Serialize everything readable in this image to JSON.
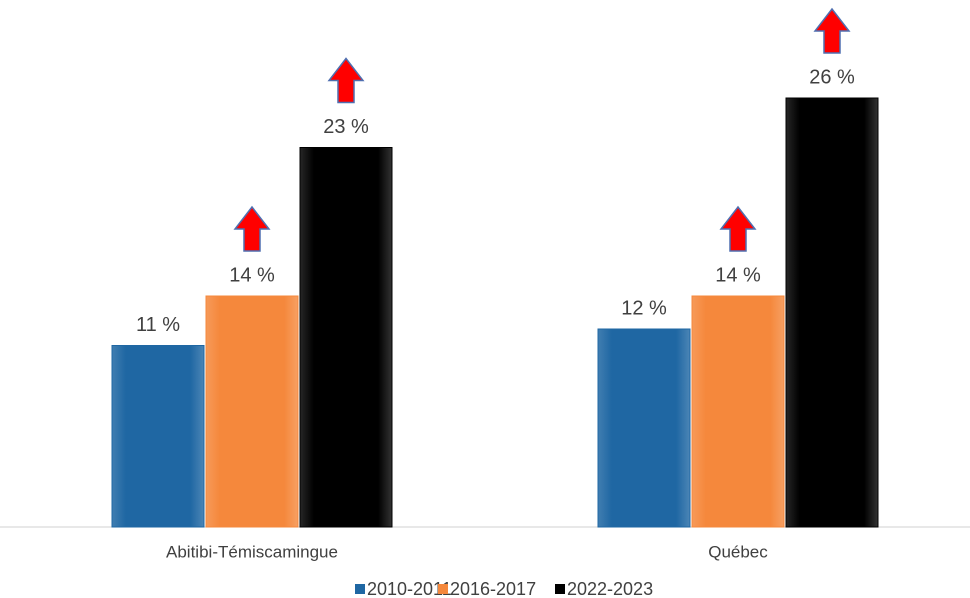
{
  "chart_data": {
    "type": "bar",
    "categories": [
      "Abitibi-Témiscamingue",
      "Québec"
    ],
    "series": [
      {
        "name": "2010-2011",
        "color": "#1f67a3",
        "values": [
          11,
          12
        ],
        "value_labels": [
          "11 %",
          "12 %"
        ]
      },
      {
        "name": "2016-2017",
        "color": "#f5883c",
        "values": [
          14,
          14
        ],
        "value_labels": [
          "14 %",
          "14 %"
        ]
      },
      {
        "name": "2022-2023",
        "color": "#000000",
        "values": [
          23,
          26
        ],
        "value_labels": [
          "23 %",
          "26 %"
        ]
      }
    ]
  }
}
